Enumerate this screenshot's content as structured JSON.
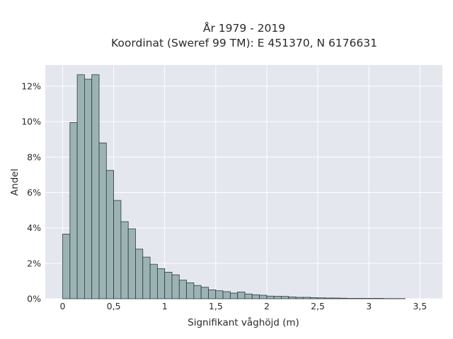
{
  "chart_data": {
    "type": "bar",
    "title_lines": [
      "År 1979 - 2019",
      "Koordinat (Sweref 99 TM): E 451370, N 6176631"
    ],
    "xlabel": "Signifikant våghöjd (m)",
    "ylabel": "Andel",
    "xlim": [
      -0.17,
      3.72
    ],
    "ylim": [
      0,
      13.2
    ],
    "x_ticks": [
      0,
      0.5,
      1,
      1.5,
      2,
      2.5,
      3,
      3.5
    ],
    "x_tick_labels": [
      "0",
      "0,5",
      "1",
      "1,5",
      "2",
      "2,5",
      "3",
      "3,5"
    ],
    "y_ticks": [
      0,
      2,
      4,
      6,
      8,
      10,
      12
    ],
    "y_tick_labels": [
      "0%",
      "2%",
      "4%",
      "6%",
      "8%",
      "10%",
      "12%"
    ],
    "bin_width": 0.0714,
    "bin_start": 0,
    "values": [
      3.65,
      9.95,
      12.65,
      12.4,
      12.65,
      8.8,
      7.25,
      5.55,
      4.35,
      3.95,
      2.8,
      2.35,
      1.95,
      1.7,
      1.5,
      1.35,
      1.05,
      0.9,
      0.75,
      0.65,
      0.5,
      0.45,
      0.4,
      0.32,
      0.38,
      0.27,
      0.22,
      0.2,
      0.15,
      0.14,
      0.13,
      0.1,
      0.08,
      0.08,
      0.06,
      0.05,
      0.04,
      0.04,
      0.03,
      0.02,
      0.02,
      0.02,
      0.02,
      0.02,
      0.01,
      0.01,
      0.01
    ],
    "grid": true,
    "colors": {
      "bar_fill": "#9cb3b4",
      "bar_stroke": "#2d3a3a",
      "plot_bg": "#e5e7ef",
      "grid": "#ffffff"
    }
  }
}
